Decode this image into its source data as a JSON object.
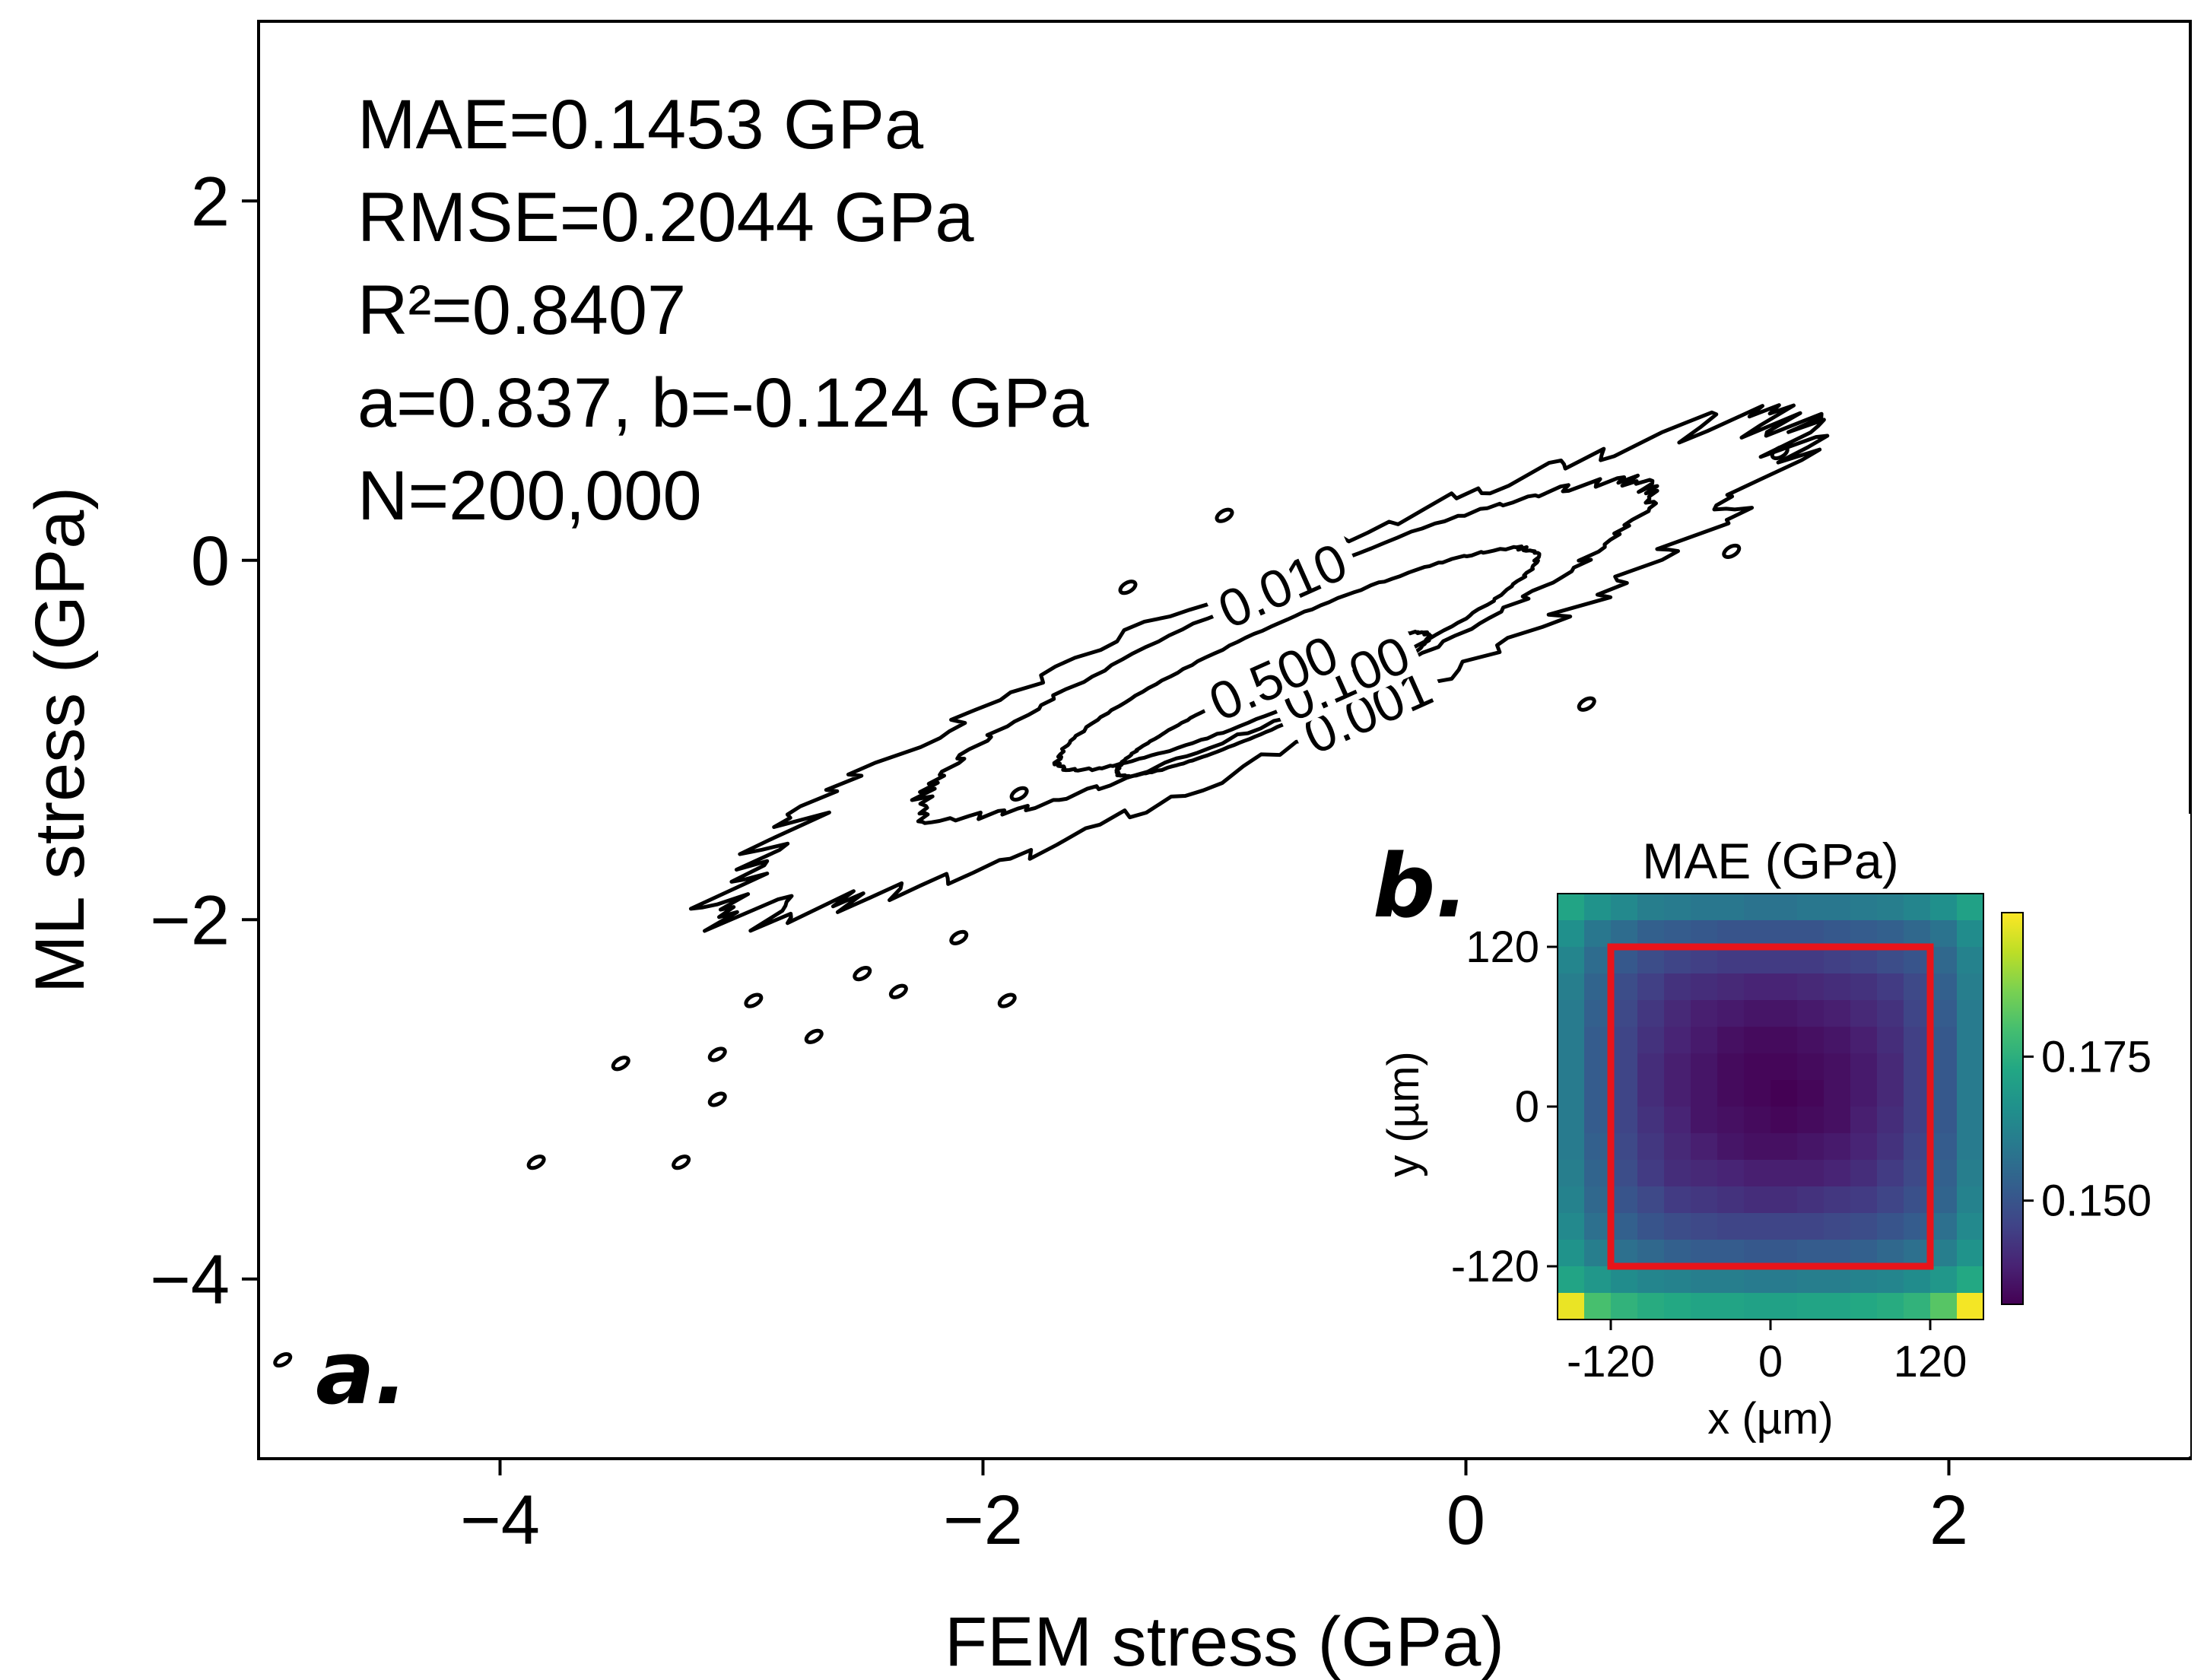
{
  "chart_data": [
    {
      "panel": "a.",
      "type": "contour",
      "xlabel": "FEM stress (GPa)",
      "ylabel": "ML stress (GPa)",
      "xlim": [
        -5,
        3
      ],
      "ylim": [
        -5,
        3
      ],
      "xticks": [
        -4,
        -2,
        0,
        2
      ],
      "yticks": [
        -4,
        -2,
        0,
        2
      ],
      "xtick_labels": [
        "−4",
        "−2",
        "0",
        "2"
      ],
      "ytick_labels": [
        "−4",
        "−2",
        "0",
        "2"
      ],
      "annotation_lines": [
        "MAE=0.1453 GPa",
        "RMSE=0.2044 GPa",
        "R²=0.8407",
        "a=0.837, b=-0.124 GPa",
        "N=200,000"
      ],
      "contour_levels": [
        0.001,
        0.01,
        0.1,
        0.5
      ],
      "contour_labels": [
        "0.001",
        "0.010",
        "0.100",
        "0.500"
      ],
      "contours": [
        {
          "level": 0.001,
          "center": [
            -0.85,
            -0.6
          ],
          "angle_deg": 31,
          "semi_major": 2.55,
          "semi_minor": 0.45
        },
        {
          "level": 0.01,
          "center": [
            -0.75,
            -0.5
          ],
          "angle_deg": 31,
          "semi_major": 1.75,
          "semi_minor": 0.32
        },
        {
          "level": 0.1,
          "center": [
            -0.7,
            -0.55
          ],
          "angle_deg": 31,
          "semi_major": 1.15,
          "semi_minor": 0.21
        },
        {
          "level": 0.5,
          "center": [
            -0.8,
            -0.8
          ],
          "angle_deg": 31,
          "semi_major": 0.75,
          "semi_minor": 0.12
        }
      ],
      "outliers": [
        [
          -4.9,
          -4.45
        ],
        [
          -3.85,
          -3.35
        ],
        [
          -3.25,
          -3.35
        ],
        [
          -3.5,
          -2.8
        ],
        [
          -3.1,
          -3.0
        ],
        [
          -3.1,
          -2.75
        ],
        [
          -2.95,
          -2.45
        ],
        [
          -2.7,
          -2.65
        ],
        [
          -2.5,
          -2.3
        ],
        [
          -2.35,
          -2.4
        ],
        [
          -2.1,
          -2.1
        ],
        [
          -1.9,
          -2.45
        ],
        [
          -1.85,
          -1.3
        ],
        [
          -1.4,
          -0.15
        ],
        [
          -1.0,
          0.25
        ],
        [
          0.5,
          -0.8
        ],
        [
          1.3,
          0.6
        ],
        [
          1.1,
          0.05
        ]
      ],
      "grid": false
    },
    {
      "panel": "b.",
      "type": "heatmap",
      "title": "MAE (GPa)",
      "xlabel": "x (µm)",
      "ylabel": "y (µm)",
      "xlim": [
        -160,
        160
      ],
      "ylim": [
        -160,
        160
      ],
      "xticks": [
        -120,
        0,
        120
      ],
      "yticks": [
        120,
        0,
        -120
      ],
      "xtick_labels": [
        "-120",
        "0",
        "120"
      ],
      "ytick_labels": [
        "120",
        "0",
        "-120"
      ],
      "colorbar_ticks": [
        0.15,
        0.175
      ],
      "colorbar_tick_labels": [
        "0.150",
        "0.175"
      ],
      "colorbar_range": [
        0.132,
        0.2
      ],
      "colormap": "viridis",
      "highlight_box": {
        "x": [
          -120,
          120
        ],
        "y": [
          -120,
          120
        ],
        "color": "#e8141a"
      },
      "grid_size": [
        16,
        16
      ],
      "values": [
        [
          0.172,
          0.167,
          0.164,
          0.161,
          0.16,
          0.159,
          0.159,
          0.158,
          0.158,
          0.159,
          0.159,
          0.16,
          0.161,
          0.163,
          0.166,
          0.171
        ],
        [
          0.166,
          0.159,
          0.156,
          0.153,
          0.152,
          0.151,
          0.15,
          0.15,
          0.15,
          0.15,
          0.151,
          0.152,
          0.153,
          0.155,
          0.158,
          0.165
        ],
        [
          0.163,
          0.156,
          0.151,
          0.148,
          0.146,
          0.145,
          0.144,
          0.144,
          0.144,
          0.144,
          0.145,
          0.146,
          0.148,
          0.15,
          0.155,
          0.162
        ],
        [
          0.161,
          0.154,
          0.148,
          0.145,
          0.142,
          0.141,
          0.14,
          0.139,
          0.139,
          0.14,
          0.141,
          0.142,
          0.144,
          0.147,
          0.153,
          0.161
        ],
        [
          0.16,
          0.153,
          0.147,
          0.143,
          0.14,
          0.138,
          0.137,
          0.136,
          0.136,
          0.137,
          0.138,
          0.14,
          0.142,
          0.146,
          0.152,
          0.16
        ],
        [
          0.16,
          0.152,
          0.146,
          0.142,
          0.139,
          0.137,
          0.135,
          0.134,
          0.134,
          0.135,
          0.136,
          0.138,
          0.141,
          0.145,
          0.151,
          0.16
        ],
        [
          0.16,
          0.152,
          0.146,
          0.141,
          0.138,
          0.136,
          0.134,
          0.133,
          0.133,
          0.134,
          0.135,
          0.137,
          0.14,
          0.145,
          0.151,
          0.16
        ],
        [
          0.16,
          0.152,
          0.146,
          0.141,
          0.138,
          0.136,
          0.134,
          0.133,
          0.132,
          0.133,
          0.135,
          0.137,
          0.14,
          0.145,
          0.151,
          0.16
        ],
        [
          0.16,
          0.152,
          0.146,
          0.142,
          0.139,
          0.136,
          0.135,
          0.134,
          0.133,
          0.134,
          0.135,
          0.138,
          0.141,
          0.145,
          0.151,
          0.16
        ],
        [
          0.16,
          0.153,
          0.147,
          0.143,
          0.14,
          0.138,
          0.136,
          0.135,
          0.135,
          0.136,
          0.137,
          0.139,
          0.142,
          0.146,
          0.152,
          0.16
        ],
        [
          0.161,
          0.154,
          0.148,
          0.144,
          0.141,
          0.14,
          0.139,
          0.138,
          0.138,
          0.138,
          0.139,
          0.141,
          0.144,
          0.147,
          0.153,
          0.161
        ],
        [
          0.162,
          0.155,
          0.15,
          0.147,
          0.144,
          0.143,
          0.142,
          0.141,
          0.141,
          0.142,
          0.143,
          0.144,
          0.146,
          0.149,
          0.154,
          0.162
        ],
        [
          0.164,
          0.157,
          0.153,
          0.15,
          0.148,
          0.147,
          0.146,
          0.146,
          0.146,
          0.146,
          0.147,
          0.148,
          0.15,
          0.152,
          0.157,
          0.164
        ],
        [
          0.167,
          0.161,
          0.157,
          0.155,
          0.153,
          0.152,
          0.152,
          0.151,
          0.151,
          0.152,
          0.152,
          0.153,
          0.155,
          0.157,
          0.161,
          0.167
        ],
        [
          0.172,
          0.168,
          0.165,
          0.163,
          0.162,
          0.161,
          0.161,
          0.16,
          0.16,
          0.161,
          0.161,
          0.162,
          0.163,
          0.165,
          0.168,
          0.173
        ],
        [
          0.198,
          0.18,
          0.176,
          0.174,
          0.173,
          0.172,
          0.172,
          0.171,
          0.171,
          0.172,
          0.172,
          0.173,
          0.174,
          0.176,
          0.182,
          0.199
        ]
      ]
    }
  ]
}
